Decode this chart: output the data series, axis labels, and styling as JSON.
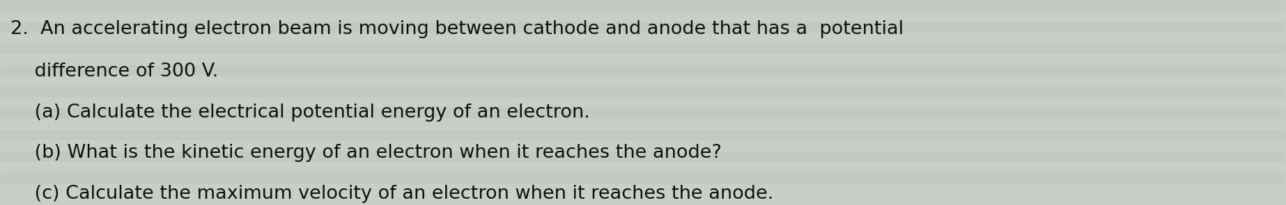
{
  "background_color": "#c8cfc8",
  "text_color": "#111111",
  "line1": "2.  An accelerating electron beam is moving between cathode and anode that has a  potential",
  "line2": "    difference of 300 V.",
  "line3": "    (a) Calculate the electrical potential energy of an electron.",
  "line4": "    (b) What is the kinetic energy of an electron when it reaches the anode?",
  "line5": "    (c) Calculate the maximum velocity of an electron when it reaches the anode.",
  "font_family": "DejaVu Sans",
  "font_size_main": 19.5,
  "figwidth": 18.46,
  "figheight": 2.95,
  "dpi": 100,
  "stripe_colors": [
    "#c4ccc4",
    "#cdd4cd",
    "#bfc7bf",
    "#d2d9d2"
  ],
  "num_stripes": 18
}
